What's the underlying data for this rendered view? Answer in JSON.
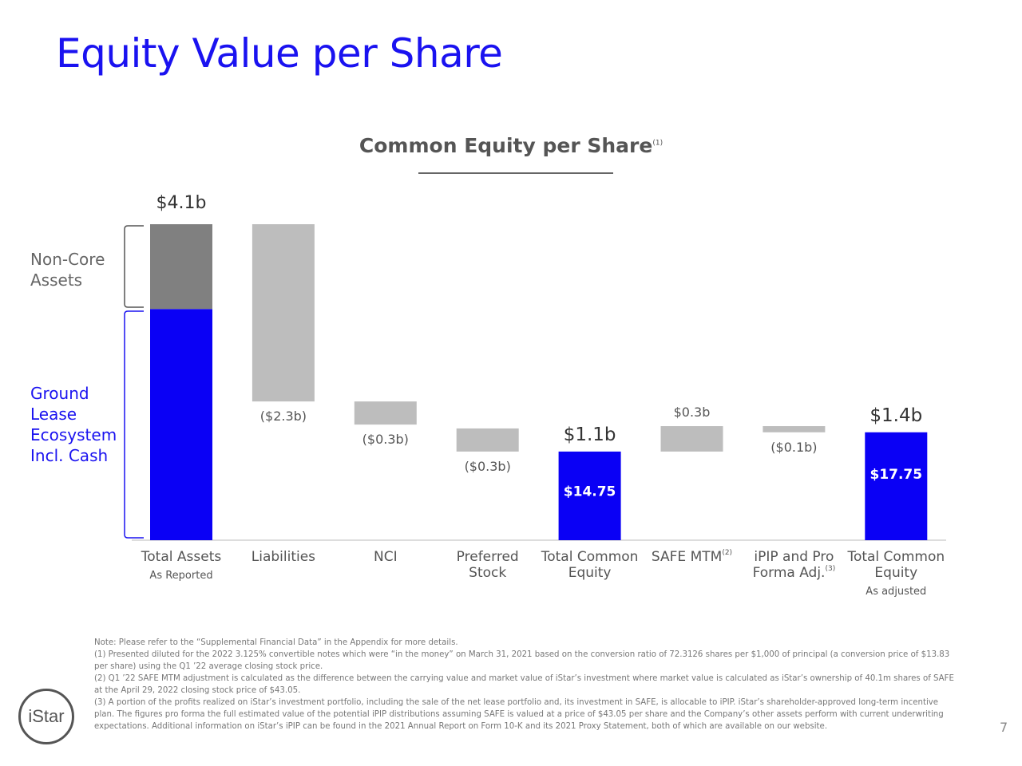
{
  "slide": {
    "title": "Equity Value per Share",
    "page_number": "7",
    "logo_text": "iStar"
  },
  "side_labels": {
    "non_core": [
      "Non-Core",
      "Assets"
    ],
    "ground_lease": [
      "Ground",
      "Lease",
      "Ecosystem",
      "Incl. Cash"
    ]
  },
  "chart_data": {
    "type": "bar",
    "subtype": "waterfall",
    "title": "Common Equity per Share",
    "title_superscript": "(1)",
    "unit": "$b",
    "categories": [
      {
        "label": [
          "Total Assets"
        ],
        "sublabel": "As Reported",
        "superscript": ""
      },
      {
        "label": [
          "Liabilities"
        ],
        "sublabel": "",
        "superscript": ""
      },
      {
        "label": [
          "NCI"
        ],
        "sublabel": "",
        "superscript": ""
      },
      {
        "label": [
          "Preferred",
          "Stock"
        ],
        "sublabel": "",
        "superscript": ""
      },
      {
        "label": [
          "Total Common",
          "Equity"
        ],
        "sublabel": "",
        "superscript": ""
      },
      {
        "label": [
          "SAFE MTM"
        ],
        "sublabel": "",
        "superscript": "(2)"
      },
      {
        "label": [
          "iPIP and Pro",
          "Forma Adj."
        ],
        "sublabel": "",
        "superscript": "(3)"
      },
      {
        "label": [
          "Total Common",
          "Equity"
        ],
        "sublabel": "As adjusted",
        "superscript": ""
      }
    ],
    "bars": [
      {
        "kind": "total-stacked",
        "start": 0,
        "end": 4.1,
        "label": "$4.1b",
        "segments": [
          {
            "name": "Ground Lease Ecosystem Incl. Cash",
            "value": 3.0,
            "color": "#0a00f5"
          },
          {
            "name": "Non-Core Assets",
            "value": 1.1,
            "color": "#808080"
          }
        ]
      },
      {
        "kind": "decrease",
        "start": 4.1,
        "end": 1.8,
        "label": "($2.3b)",
        "color": "#bdbdbd"
      },
      {
        "kind": "decrease",
        "start": 1.8,
        "end": 1.5,
        "label": "($0.3b)",
        "color": "#bdbdbd"
      },
      {
        "kind": "decrease",
        "start": 1.45,
        "end": 1.15,
        "label": "($0.3b)",
        "color": "#bdbdbd"
      },
      {
        "kind": "total",
        "start": 0,
        "end": 1.15,
        "label": "$1.1b",
        "inner_label": "$14.75",
        "color": "#0a00f5"
      },
      {
        "kind": "increase",
        "start": 1.15,
        "end": 1.48,
        "label": "$0.3b",
        "color": "#bdbdbd"
      },
      {
        "kind": "decrease",
        "start": 1.48,
        "end": 1.4,
        "label": "($0.1b)",
        "color": "#bdbdbd"
      },
      {
        "kind": "total",
        "start": 0,
        "end": 1.4,
        "label": "$1.4b",
        "inner_label": "$17.75",
        "color": "#0a00f5"
      }
    ],
    "ylim": [
      0,
      4.1
    ],
    "grid": false,
    "legend": "none"
  },
  "footnotes": [
    "Note: Please refer to the “Supplemental Financial Data” in the Appendix for more details.",
    "(1) Presented diluted for the 2022 3.125% convertible notes which were “in the money” on March 31, 2021 based on the conversion ratio of 72.3126 shares per $1,000 of principal (a conversion price of $13.83 per share) using the Q1 ’22 average closing stock price.",
    "(2) Q1 ’22 SAFE MTM adjustment is calculated as the difference between the carrying value and market value of iStar’s investment where market value is calculated as iStar’s ownership of 40.1m shares of SAFE at the April 29, 2022 closing stock price of $43.05.",
    "(3) A portion of the profits realized on iStar’s investment portfolio, including the sale of the net lease portfolio and, its investment in SAFE, is allocable to iPIP. iStar’s shareholder-approved long-term incentive plan. The figures pro forma the full estimated value of the potential iPIP distributions assuming SAFE is valued at a price of $43.05 per share and the Company’s other assets perform with current underwriting expectations. Additional information on iStar’s iPIP can be found in the 2021 Annual Report on Form 10-K and its 2021 Proxy Statement, both of which are available on our website."
  ]
}
